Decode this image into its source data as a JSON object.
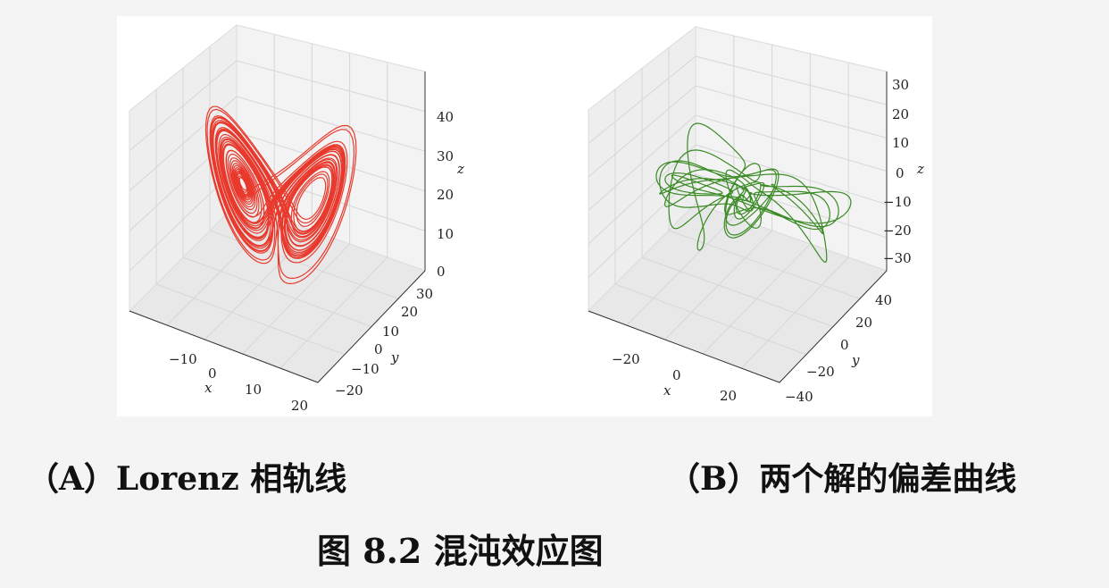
{
  "captions": {
    "panel_a": "（A）Lorenz 相轨线",
    "panel_b": "（B）两个解的偏差曲线",
    "figure": "图 8.2  混沌效应图"
  },
  "colors": {
    "series_a": "#e8392c",
    "series_b": "#3a8a25",
    "grid": "#d8d8d8",
    "pane": "#f0f0f0"
  },
  "chart_data": [
    {
      "type": "line",
      "projection": "3d",
      "series": [
        {
          "description": "Lorenz attractor trajectory (x, y, z)"
        }
      ],
      "xlabel": "x",
      "ylabel": "y",
      "zlabel": "z",
      "x_ticks": [
        "−10",
        "0",
        "10",
        "20"
      ],
      "y_ticks": [
        "−20",
        "−10",
        "0",
        "10",
        "20",
        "30"
      ],
      "z_ticks": [
        "0",
        "10",
        "20",
        "30",
        "40"
      ],
      "xlim": [
        -20,
        20
      ],
      "ylim": [
        -25,
        30
      ],
      "zlim": [
        0,
        48
      ],
      "grid": true
    },
    {
      "type": "line",
      "projection": "3d",
      "series": [
        {
          "description": "difference between two Lorenz solutions"
        }
      ],
      "xlabel": "x",
      "ylabel": "y",
      "zlabel": "z",
      "x_ticks": [
        "−20",
        "0",
        "20"
      ],
      "y_ticks": [
        "−40",
        "−20",
        "0",
        "20",
        "40"
      ],
      "z_ticks": [
        "−30",
        "−20",
        "−10",
        "0",
        "10",
        "20",
        "30"
      ],
      "xlim": [
        -35,
        35
      ],
      "ylim": [
        -45,
        45
      ],
      "zlim": [
        -35,
        35
      ],
      "grid": true
    }
  ]
}
